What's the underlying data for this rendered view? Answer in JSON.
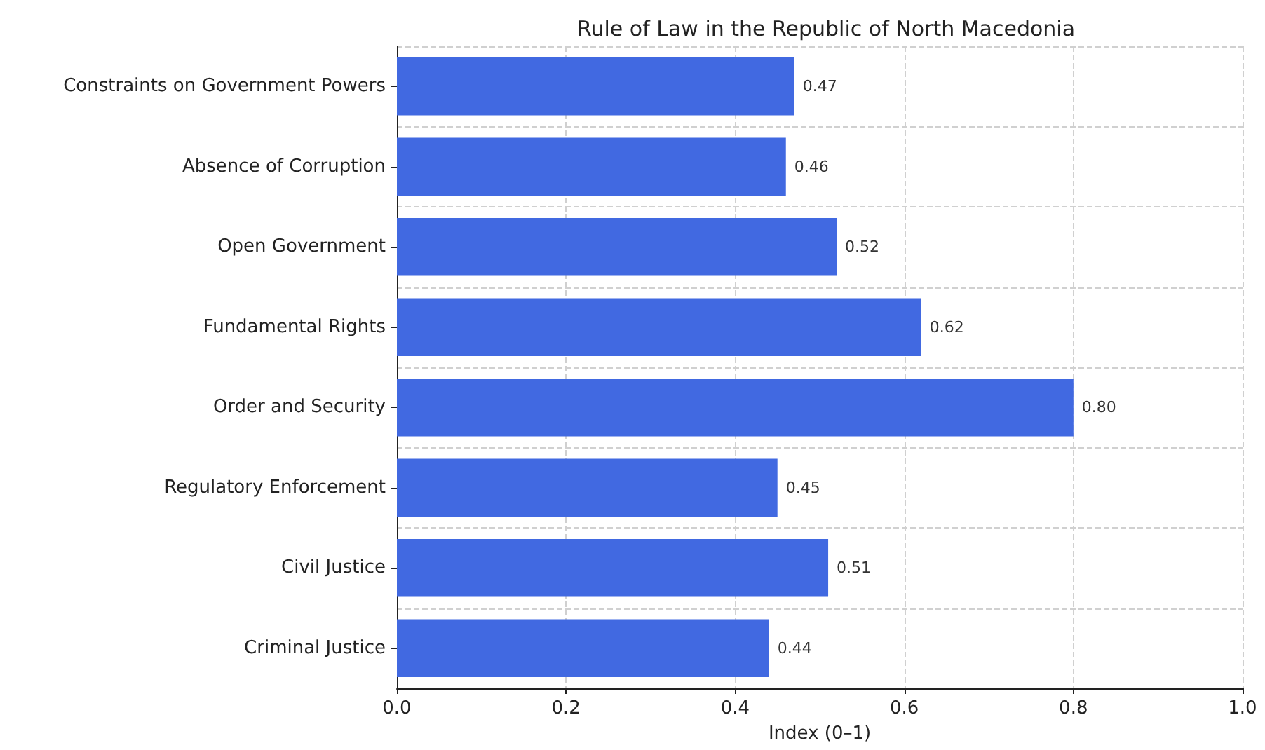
{
  "chart_data": {
    "type": "bar",
    "orientation": "horizontal",
    "title": "Rule of Law in the Republic of North Macedonia",
    "xlabel": "Index (0–1)",
    "categories": [
      "Constraints on Government Powers",
      "Absence of Corruption",
      "Open Government",
      "Fundamental Rights",
      "Order and Security",
      "Regulatory Enforcement",
      "Civil Justice",
      "Criminal Justice"
    ],
    "values": [
      0.47,
      0.46,
      0.52,
      0.62,
      0.8,
      0.45,
      0.51,
      0.44
    ],
    "value_labels": [
      "0.47",
      "0.46",
      "0.52",
      "0.62",
      "0.80",
      "0.45",
      "0.51",
      "0.44"
    ],
    "color": "#4169e1",
    "xlim": [
      0,
      1
    ],
    "xticks": [
      {
        "value": 0,
        "label": "0.0"
      },
      {
        "value": 0.2,
        "label": "0.2"
      },
      {
        "value": 0.4,
        "label": "0.4"
      },
      {
        "value": 0.6,
        "label": "0.6"
      },
      {
        "value": 0.8,
        "label": "0.8"
      },
      {
        "value": 1,
        "label": "1.0"
      }
    ],
    "grid": true
  }
}
